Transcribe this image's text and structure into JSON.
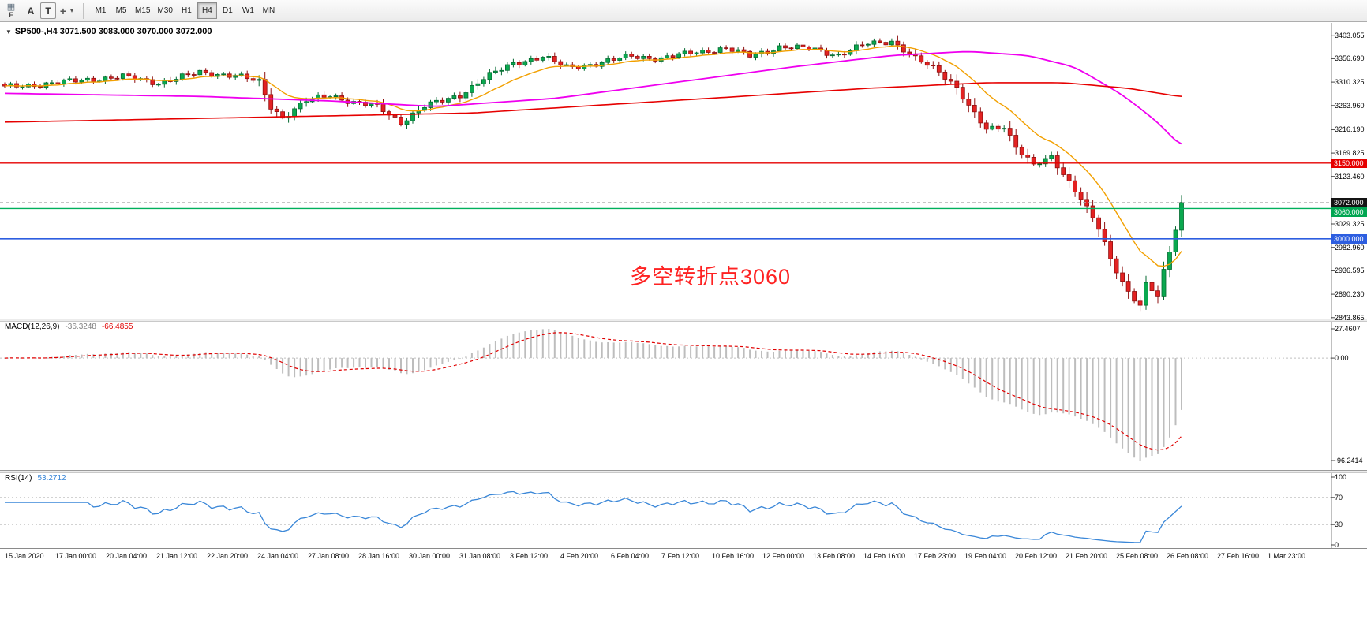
{
  "toolbar": {
    "f_label": "F",
    "a_label": "A",
    "t_label": "T",
    "icons": {
      "charts_grid": "▦",
      "crosshair": "+",
      "dropdown": "▾"
    },
    "timeframes": [
      {
        "label": "M1",
        "active": false
      },
      {
        "label": "M5",
        "active": false
      },
      {
        "label": "M15",
        "active": false
      },
      {
        "label": "M30",
        "active": false
      },
      {
        "label": "H1",
        "active": false
      },
      {
        "label": "H4",
        "active": true
      },
      {
        "label": "D1",
        "active": false
      },
      {
        "label": "W1",
        "active": false
      },
      {
        "label": "MN",
        "active": false
      }
    ]
  },
  "chart": {
    "symbol_dropdown_icon": "▼",
    "symbol_title": "SP500-,H4 3071.500 3083.000 3070.000 3072.000",
    "annotation": {
      "text": "多空转折点3060",
      "color": "#fe2222"
    },
    "price_axis_labels": [
      "3403.055",
      "3356.690",
      "3310.325",
      "3263.960",
      "3216.190",
      "3169.825",
      "3123.460",
      "3029.325",
      "2982.960",
      "2936.595",
      "2890.230",
      "2843.865"
    ],
    "badges": [
      {
        "text": "3150.000",
        "price": 3150.0,
        "bg": "#e60000"
      },
      {
        "text": "3072.000",
        "price": 3072.0,
        "bg": "#141414"
      },
      {
        "text": "3060.000",
        "price": 3060.0,
        "bg": "#00a651"
      },
      {
        "text": "3000.000",
        "price": 3000.0,
        "bg": "#2d5ee0"
      }
    ],
    "hlines": [
      {
        "price": 3150.0,
        "color": "#e60000",
        "style": "solid",
        "width": 1.4
      },
      {
        "price": 3060.0,
        "color": "#00b05c",
        "style": "solid",
        "width": 1.4
      },
      {
        "price": 3000.0,
        "color": "#2d5ee0",
        "style": "solid",
        "width": 1.6
      },
      {
        "price": 3072.0,
        "color": "#b0b0b0",
        "style": "dashed",
        "width": 1
      }
    ]
  },
  "macd_panel": {
    "label_name": "MACD(12,26,9)",
    "value_main": "-36.3248",
    "value_signal": "-66.4855",
    "axis_labels": [
      {
        "text": "27.4607",
        "value": 27.4607
      },
      {
        "text": "0.00",
        "value": 0
      },
      {
        "text": "-96.2414",
        "value": -96.2414
      }
    ],
    "ylim": [
      -96.2414,
      27.4607
    ],
    "colors": {
      "histogram": "#bdbdbd",
      "signal": "#e00000"
    }
  },
  "rsi_panel": {
    "label_name": "RSI(14)",
    "value": "53.2712",
    "axis_labels": [
      {
        "text": "100",
        "value": 100
      },
      {
        "text": "70",
        "value": 70
      },
      {
        "text": "30",
        "value": 30
      },
      {
        "text": "0",
        "value": 0
      }
    ],
    "levels": [
      70,
      30
    ],
    "ylim": [
      0,
      100
    ],
    "color": "#3a87d8"
  },
  "time_axis": [
    "15 Jan 2020",
    "17 Jan 00:00",
    "20 Jan 04:00",
    "21 Jan 12:00",
    "22 Jan 20:00",
    "24 Jan 04:00",
    "27 Jan 08:00",
    "28 Jan 16:00",
    "30 Jan 00:00",
    "31 Jan 08:00",
    "3 Feb 12:00",
    "4 Feb 20:00",
    "6 Feb 04:00",
    "7 Feb 12:00",
    "10 Feb 16:00",
    "12 Feb 00:00",
    "13 Feb 08:00",
    "14 Feb 16:00",
    "17 Feb 23:00",
    "19 Feb 04:00",
    "20 Feb 12:00",
    "21 Feb 20:00",
    "25 Feb 08:00",
    "26 Feb 08:00",
    "27 Feb 16:00",
    "1 Mar 23:00"
  ],
  "chart_data": {
    "type": "candlestick",
    "symbol": "SP500-",
    "timeframe": "H4",
    "bars": 200,
    "price_ylim": [
      2842,
      3426
    ],
    "last_bar_ohlc": {
      "open": 3071.5,
      "high": 3083.0,
      "low": 3070.0,
      "close": 3072.0
    },
    "last_close": 3072.0,
    "key_levels": [
      3150.0,
      3060.0,
      3000.0
    ],
    "close_path": [
      [
        0,
        3300
      ],
      [
        8,
        3308
      ],
      [
        14,
        3315
      ],
      [
        20,
        3321
      ],
      [
        26,
        3309
      ],
      [
        33,
        3329
      ],
      [
        39,
        3324
      ],
      [
        43,
        3310
      ],
      [
        45,
        3262
      ],
      [
        47,
        3240
      ],
      [
        51,
        3273
      ],
      [
        55,
        3285
      ],
      [
        59,
        3270
      ],
      [
        63,
        3262
      ],
      [
        67,
        3231
      ],
      [
        71,
        3262
      ],
      [
        77,
        3285
      ],
      [
        81,
        3317
      ],
      [
        86,
        3348
      ],
      [
        91,
        3360
      ],
      [
        95,
        3340
      ],
      [
        101,
        3348
      ],
      [
        106,
        3363
      ],
      [
        111,
        3356
      ],
      [
        117,
        3371
      ],
      [
        122,
        3376
      ],
      [
        126,
        3363
      ],
      [
        131,
        3379
      ],
      [
        137,
        3376
      ],
      [
        141,
        3363
      ],
      [
        146,
        3387
      ],
      [
        150,
        3392
      ],
      [
        154,
        3356
      ],
      [
        158,
        3332
      ],
      [
        161,
        3301
      ],
      [
        163,
        3262
      ],
      [
        166,
        3215
      ],
      [
        169,
        3223
      ],
      [
        171,
        3184
      ],
      [
        174,
        3145
      ],
      [
        177,
        3160
      ],
      [
        179,
        3129
      ],
      [
        182,
        3082
      ],
      [
        185,
        3020
      ],
      [
        187,
        2957
      ],
      [
        190,
        2895
      ],
      [
        192,
        2871
      ],
      [
        193,
        2910
      ],
      [
        195,
        2887
      ],
      [
        196,
        2933
      ],
      [
        197,
        2972
      ],
      [
        198,
        3020
      ],
      [
        199,
        3072
      ]
    ],
    "colors": {
      "up": "#0aa84f",
      "up_border": "#056a31",
      "down": "#e32222",
      "down_border": "#8f1010"
    },
    "moving_averages": {
      "fast": {
        "color": "#f2a000",
        "period": 13
      },
      "mid": {
        "color": "#ef00ef",
        "waypoints": [
          [
            0,
            3288
          ],
          [
            33,
            3282
          ],
          [
            55,
            3273
          ],
          [
            73,
            3262
          ],
          [
            93,
            3278
          ],
          [
            113,
            3309
          ],
          [
            133,
            3340
          ],
          [
            150,
            3363
          ],
          [
            163,
            3371
          ],
          [
            173,
            3363
          ],
          [
            181,
            3340
          ],
          [
            189,
            3285
          ],
          [
            195,
            3231
          ],
          [
            199,
            3181
          ]
        ]
      },
      "slow": {
        "color": "#e60000",
        "waypoints": [
          [
            0,
            3231
          ],
          [
            40,
            3240
          ],
          [
            79,
            3249
          ],
          [
            119,
            3278
          ],
          [
            146,
            3298
          ],
          [
            166,
            3309
          ],
          [
            179,
            3309
          ],
          [
            190,
            3298
          ],
          [
            199,
            3281
          ]
        ]
      }
    }
  }
}
